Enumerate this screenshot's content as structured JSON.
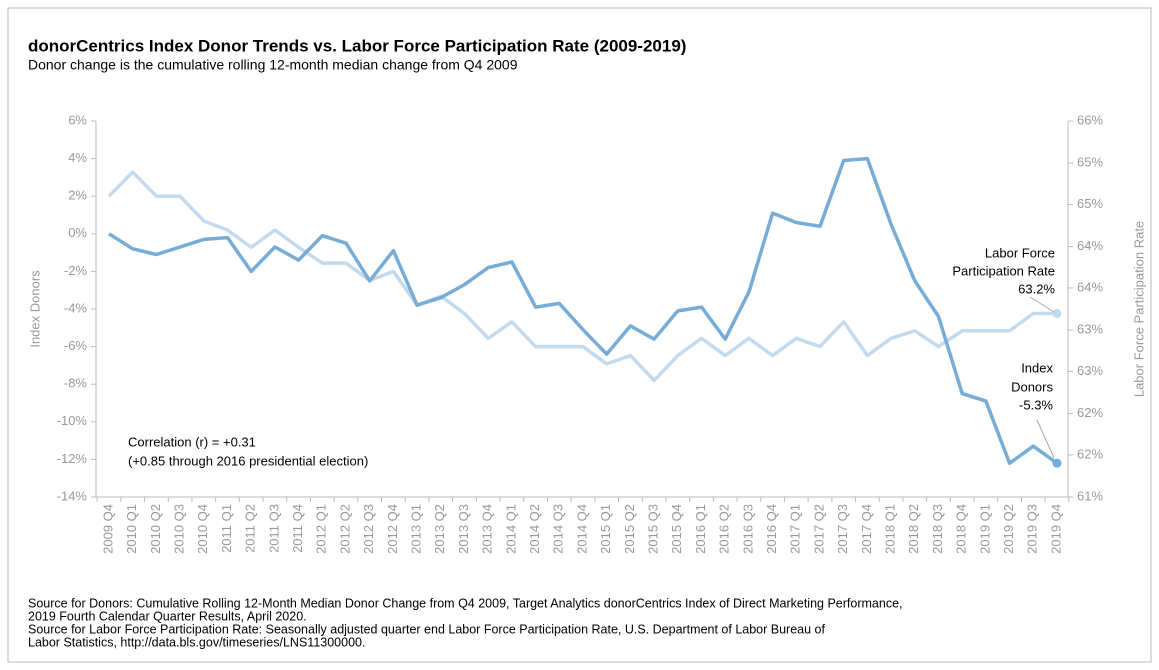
{
  "chart_data": {
    "type": "line",
    "title": "donorCentrics Index Donor Trends vs. Labor Force Participation Rate (2009-2019)",
    "subtitle": "Donor change is the cumulative rolling 12-month median change from Q4 2009",
    "y_label": "Index Donors",
    "y2_label": "Labor Force Participation Rate",
    "categories": [
      "2009 Q4",
      "2010 Q1",
      "2010 Q2",
      "2010 Q3",
      "2010 Q4",
      "2011 Q1",
      "2011 Q2",
      "2011 Q3",
      "2011 Q4",
      "2012 Q1",
      "2012 Q2",
      "2012 Q3",
      "2012 Q4",
      "2013 Q1",
      "2013 Q2",
      "2013 Q3",
      "2013 Q4",
      "2014 Q1",
      "2014 Q2",
      "2014 Q3",
      "2014 Q4",
      "2015 Q1",
      "2015 Q2",
      "2015 Q3",
      "2015 Q4",
      "2016 Q1",
      "2016 Q2",
      "2016 Q3",
      "2016 Q4",
      "2017 Q1",
      "2017 Q2",
      "2017 Q3",
      "2017 Q4",
      "2018 Q1",
      "2018 Q2",
      "2018 Q3",
      "2018 Q4",
      "2019 Q1",
      "2019 Q2",
      "2019 Q3",
      "2019 Q4"
    ],
    "series": [
      {
        "color": "#c3daee",
        "axis": "y2",
        "values": [
          65.0,
          65.32,
          65.0,
          65.0,
          64.67,
          64.55,
          64.32,
          64.55,
          64.32,
          64.11,
          64.11,
          63.88,
          64.0,
          63.55,
          63.67,
          63.44,
          63.11,
          63.33,
          63.0,
          63.0,
          63.0,
          62.77,
          62.88,
          62.55,
          62.88,
          63.11,
          62.88,
          63.11,
          62.88,
          63.11,
          63.0,
          63.33,
          62.88,
          63.11,
          63.21,
          63.0,
          63.21,
          63.21,
          63.21,
          63.44,
          63.44
        ]
      },
      {
        "color": "#76acd6",
        "values": [
          0.0,
          -0.8,
          -1.1,
          -0.7,
          -0.3,
          -0.2,
          -2.0,
          -0.7,
          -1.4,
          -0.1,
          -0.5,
          -2.5,
          -0.9,
          -3.8,
          -3.4,
          -2.7,
          -1.8,
          -1.5,
          -3.9,
          -3.7,
          -5.1,
          -6.4,
          -4.9,
          -5.6,
          -4.1,
          -3.9,
          -5.6,
          -3.1,
          1.1,
          0.6,
          0.4,
          3.9,
          4.0,
          0.5,
          -2.5,
          -4.4,
          -8.5,
          -8.9,
          -12.2,
          -11.3,
          -12.2
        ]
      }
    ],
    "ylim": [
      -14,
      6
    ],
    "yticks": [
      {
        "value": -14,
        "label": "-14%"
      },
      {
        "value": -12,
        "label": "-12%"
      },
      {
        "value": -10,
        "label": "-10%"
      },
      {
        "value": -8,
        "label": "-8%"
      },
      {
        "value": -6,
        "label": "-6%"
      },
      {
        "value": -4,
        "label": "-4%"
      },
      {
        "value": -2,
        "label": "-2%"
      },
      {
        "value": 0,
        "label": "0%"
      },
      {
        "value": 2,
        "label": "2%"
      },
      {
        "value": 4,
        "label": "4%"
      },
      {
        "value": 6,
        "label": "6%"
      }
    ],
    "y2lim": [
      61,
      66
    ],
    "y2ticks": [
      {
        "value": 61,
        "label": "61%"
      },
      {
        "value": 61.56,
        "label": "62%"
      },
      {
        "value": 62.11,
        "label": "62%"
      },
      {
        "value": 62.67,
        "label": "63%"
      },
      {
        "value": 63.22,
        "label": "63%"
      },
      {
        "value": 63.78,
        "label": "64%"
      },
      {
        "value": 64.33,
        "label": "64%"
      },
      {
        "value": 64.89,
        "label": "65%"
      },
      {
        "value": 65.44,
        "label": "65%"
      },
      {
        "value": 66,
        "label": "66%"
      }
    ],
    "grid": false,
    "annotations": [
      {
        "lines": [
          "Labor Force",
          "Participation Rate",
          "63.2%"
        ]
      },
      {
        "lines": [
          "Index",
          "Donors",
          "-5.3%"
        ]
      },
      {
        "lines": [
          "Correlation (r) = +0.31",
          "(+0.85 through 2016 presidential election)"
        ]
      }
    ],
    "notes": [
      "Source for Donors: Cumulative Rolling 12-Month Median Donor Change from Q4 2009, Target Analytics donorCentrics Index of Direct Marketing Performance,",
      "2019 Fourth Calendar Quarter Results, April 2020.",
      "Source for Labor Force Participation Rate: Seasonally adjusted quarter end Labor Force Participation Rate, U.S. Department of Labor Bureau of",
      "Labor Statistics, http://data.bls.gov/timeseries/LNS11300000."
    ]
  }
}
